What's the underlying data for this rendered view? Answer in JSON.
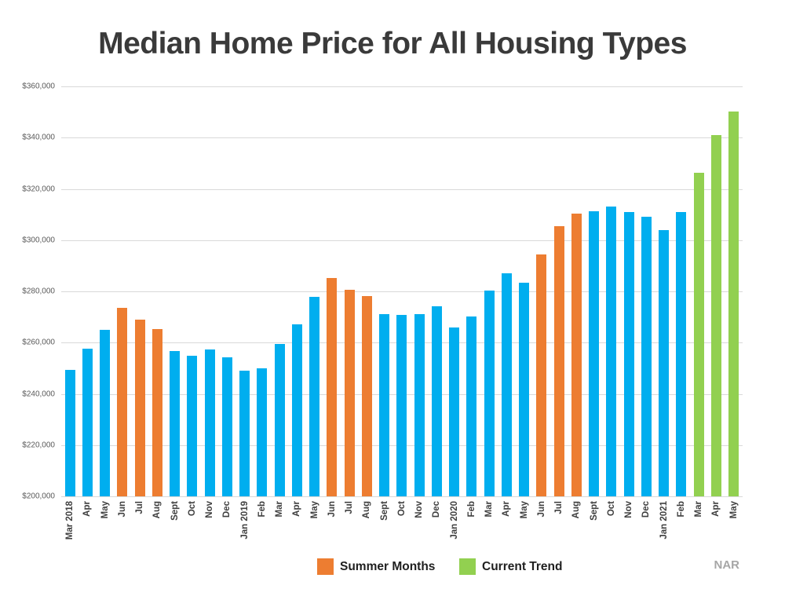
{
  "page": {
    "background": "#ffffff"
  },
  "chart_data": {
    "type": "bar",
    "title": "Median Home Price for All Housing Types",
    "source": "NAR",
    "xlabel": "",
    "ylabel": "",
    "ylim": [
      200000,
      360000
    ],
    "y_tick_step": 20000,
    "y_tick_labels": [
      "$200,000",
      "$220,000",
      "$240,000",
      "$260,000",
      "$280,000",
      "$300,000",
      "$320,000",
      "$340,000",
      "$360,000"
    ],
    "grid": true,
    "legend_position": "bottom",
    "legend": [
      {
        "label": "Summer Months",
        "color": "#ED7D31",
        "type": "summer"
      },
      {
        "label": "Current Trend",
        "color": "#92D050",
        "type": "trend"
      }
    ],
    "colors": {
      "standard": "#00AEEF",
      "summer": "#ED7D31",
      "trend": "#92D050"
    },
    "categories": [
      "Mar 2018",
      "Apr",
      "May",
      "Jun",
      "Jul",
      "Aug",
      "Sept",
      "Oct",
      "Nov",
      "Dec",
      "Jan 2019",
      "Feb",
      "Mar",
      "Apr",
      "May",
      "Jun",
      "Jul",
      "Aug",
      "Sept",
      "Oct",
      "Nov",
      "Dec",
      "Jan 2020",
      "Feb",
      "Mar",
      "Apr",
      "May",
      "Jun",
      "Jul",
      "Aug",
      "Sept",
      "Oct",
      "Nov",
      "Dec",
      "Jan 2021",
      "Feb",
      "Mar",
      "Apr",
      "May"
    ],
    "values": [
      249500,
      257700,
      265000,
      273700,
      269100,
      265300,
      256800,
      255000,
      257200,
      254400,
      249100,
      250000,
      259600,
      267100,
      277900,
      285300,
      280500,
      278200,
      271100,
      270800,
      271100,
      274200,
      266000,
      270300,
      280400,
      287000,
      283500,
      294400,
      305400,
      310400,
      311300,
      313000,
      310900,
      309100,
      303900,
      311000,
      326300,
      341000,
      350300
    ],
    "bar_types": [
      "standard",
      "standard",
      "standard",
      "summer",
      "summer",
      "summer",
      "standard",
      "standard",
      "standard",
      "standard",
      "standard",
      "standard",
      "standard",
      "standard",
      "standard",
      "summer",
      "summer",
      "summer",
      "standard",
      "standard",
      "standard",
      "standard",
      "standard",
      "standard",
      "standard",
      "standard",
      "standard",
      "summer",
      "summer",
      "summer",
      "standard",
      "standard",
      "standard",
      "standard",
      "standard",
      "standard",
      "trend",
      "trend",
      "trend"
    ]
  }
}
